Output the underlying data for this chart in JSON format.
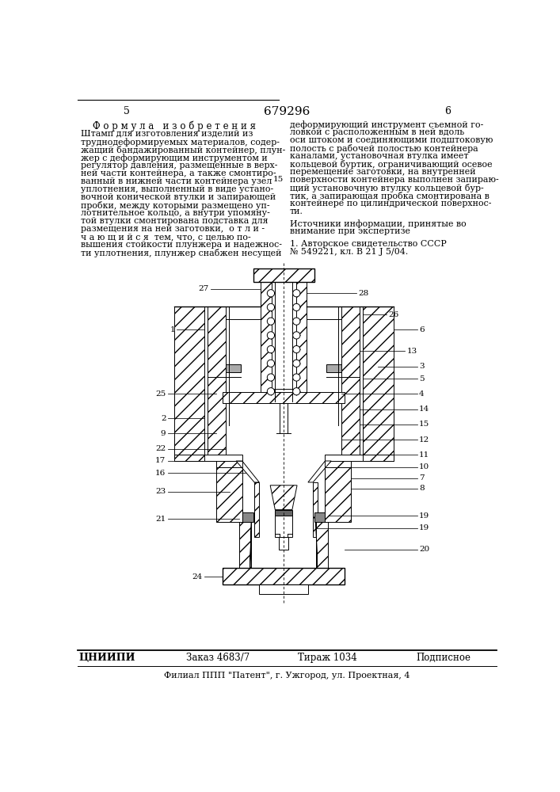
{
  "patent_number": "679296",
  "page_left": "5",
  "page_right": "6",
  "title_formula": "Ф о р м у л а   и з о б р е т е н и я",
  "left_text": [
    "Штамп для изготовления изделий из",
    "труднодеформируемых материалов, содер-",
    "жащий бандажированный контейнер, плун-",
    "жер с деформирующим инструментом и",
    "регулятор давления, размещенные в верх-",
    "ней части контейнера, а также смонтиро-",
    "ванный в нижней части контейнера узел",
    "уплотнения, выполненный в виде устано-",
    "вочной конической втулки и запирающей",
    "пробки, между которыми размещено уп-",
    "лотнительное кольцо, а внутри упомяну-",
    "той втулки смонтирована подставка для",
    "размещения на ней заготовки,  о т л и -",
    "ч а ю щ и й с я  тем, что, с целью по-",
    "вышения стойкости плунжера и надежнос-",
    "ти уплотнения, плунжер снабжен несущей"
  ],
  "right_text": [
    "деформирующий инструмент съемной го-",
    "ловкой с расположенным в ней вдоль",
    "оси штоком и соединяющими подштоковую",
    "полость с рабочей полостью контейнера",
    "каналами, установочная втулка имеет",
    "кольцевой буртик, ограничивающий осевое",
    "перемещение заготовки, на внутренней",
    "поверхности контейнера выполнен запираю-",
    "щий установочную втулку кольцевой бур-",
    "тик, а запирающая пробка смонтирована в",
    "контейнере по цилиндрической поверхнос-",
    "ти."
  ],
  "sources_title": "Источники информации, принятые во",
  "sources_subtitle": "внимание при экспертизе",
  "source_1": "1. Авторское свидетельство СССР",
  "source_1b": "№ 549221, кл. В 21 J 5/04.",
  "bottom_org": "ЦНИИПИ",
  "bottom_order": "Заказ 4683/7",
  "bottom_edition": "Тираж 1034",
  "bottom_sign": "Подписное",
  "bottom_branch": "Филиал ППП \"Патент\", г. Ужгород, ул. Проектная, 4",
  "background_color": "#ffffff",
  "text_color": "#000000"
}
